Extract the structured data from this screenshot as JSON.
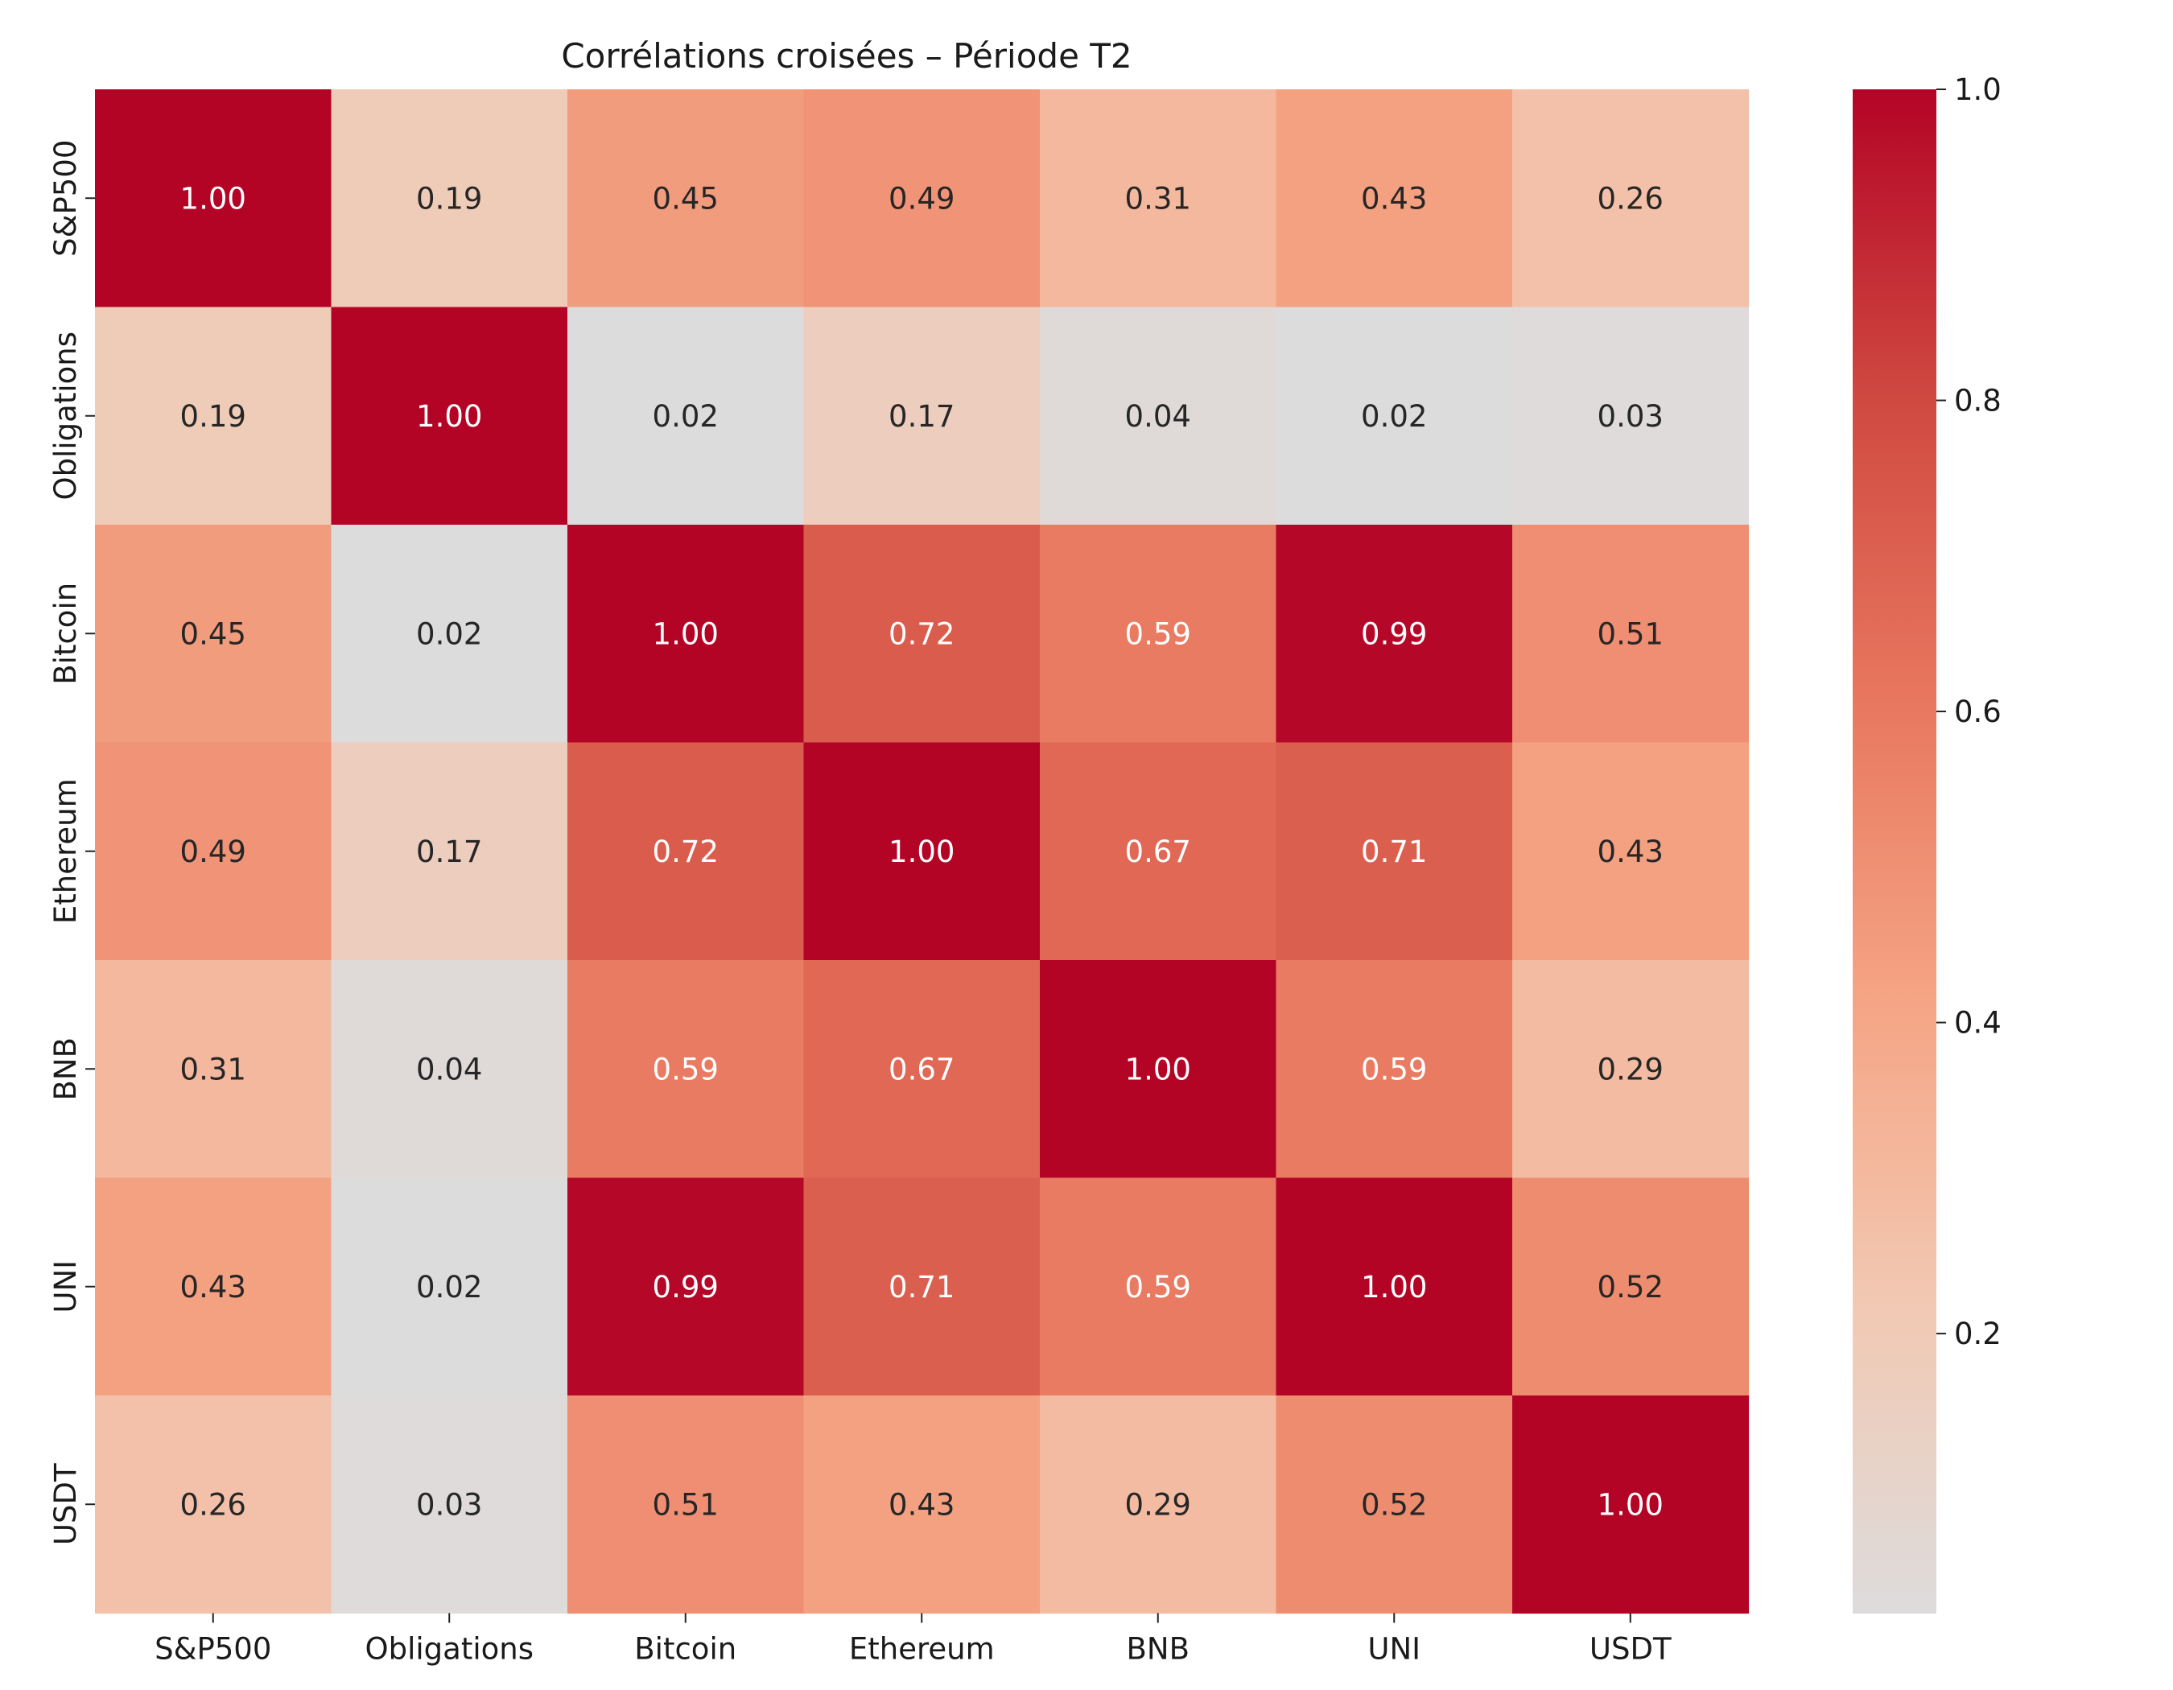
{
  "chart_data": {
    "type": "heatmap",
    "title": "Corrélations croisées – Période T2",
    "xlabel": "",
    "ylabel": "",
    "x_labels": [
      "S&P500",
      "Obligations",
      "Bitcoin",
      "Ethereum",
      "BNB",
      "UNI",
      "USDT"
    ],
    "y_labels": [
      "S&P500",
      "Obligations",
      "Bitcoin",
      "Ethereum",
      "BNB",
      "UNI",
      "USDT"
    ],
    "values": [
      [
        1.0,
        0.19,
        0.45,
        0.49,
        0.31,
        0.43,
        0.26
      ],
      [
        0.19,
        1.0,
        0.02,
        0.17,
        0.04,
        0.02,
        0.03
      ],
      [
        0.45,
        0.02,
        1.0,
        0.72,
        0.59,
        0.99,
        0.51
      ],
      [
        0.49,
        0.17,
        0.72,
        1.0,
        0.67,
        0.71,
        0.43
      ],
      [
        0.31,
        0.04,
        0.59,
        0.67,
        1.0,
        0.59,
        0.29
      ],
      [
        0.43,
        0.02,
        0.99,
        0.71,
        0.59,
        1.0,
        0.52
      ],
      [
        0.26,
        0.03,
        0.51,
        0.43,
        0.29,
        0.52,
        1.0
      ]
    ],
    "cell_labels": [
      [
        "1.00",
        "0.19",
        "0.45",
        "0.49",
        "0.31",
        "0.43",
        "0.26"
      ],
      [
        "0.19",
        "1.00",
        "0.02",
        "0.17",
        "0.04",
        "0.02",
        "0.03"
      ],
      [
        "0.45",
        "0.02",
        "1.00",
        "0.72",
        "0.59",
        "0.99",
        "0.51"
      ],
      [
        "0.49",
        "0.17",
        "0.72",
        "1.00",
        "0.67",
        "0.71",
        "0.43"
      ],
      [
        "0.31",
        "0.04",
        "0.59",
        "0.67",
        "1.00",
        "0.59",
        "0.29"
      ],
      [
        "0.43",
        "0.02",
        "0.99",
        "0.71",
        "0.59",
        "1.00",
        "0.52"
      ],
      [
        "0.26",
        "0.03",
        "0.51",
        "0.43",
        "0.29",
        "0.52",
        "1.00"
      ]
    ],
    "colorbar": {
      "range": [
        0.02,
        1.0
      ],
      "ticks": [
        0.2,
        0.4,
        0.6,
        0.8,
        1.0
      ],
      "tick_labels": [
        "0.2",
        "0.4",
        "0.6",
        "0.8",
        "1.0"
      ]
    },
    "colormap": "coolwarm",
    "colormap_stops": [
      "#dddcdc",
      "#f2c9b3",
      "#f5a585",
      "#e8775f",
      "#cf4840",
      "#b40426"
    ]
  }
}
